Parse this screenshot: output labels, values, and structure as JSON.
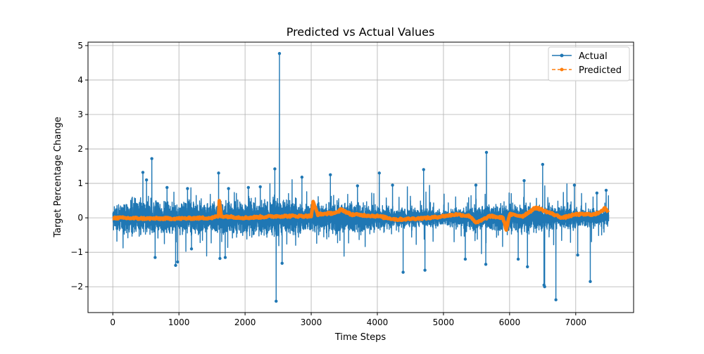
{
  "chart_data": {
    "type": "line",
    "title": "Predicted vs Actual Values",
    "xlabel": "Time Steps",
    "ylabel": "Target Percentage Change",
    "xlim": [
      -375,
      7875
    ],
    "ylim": [
      -2.75,
      5.1
    ],
    "xticks": [
      0,
      1000,
      2000,
      3000,
      4000,
      5000,
      6000,
      7000
    ],
    "xtick_labels": [
      "0",
      "1000",
      "2000",
      "3000",
      "4000",
      "5000",
      "6000",
      "7000"
    ],
    "yticks": [
      -2,
      -1,
      0,
      1,
      2,
      3,
      4,
      5
    ],
    "ytick_labels": [
      "−2",
      "−1",
      "0",
      "1",
      "2",
      "3",
      "4",
      "5"
    ],
    "grid": true,
    "legend_position": "top-right",
    "n_points": 7500,
    "colors": {
      "actual": "#1f77b4",
      "predicted": "#ff7f0e"
    },
    "series": [
      {
        "name": "Actual",
        "style": "solid line with circle markers",
        "color": "#1f77b4",
        "typical_band": [
          -0.5,
          0.5
        ],
        "noise_amplitude_by_x": [
          [
            0,
            0.25
          ],
          [
            400,
            0.45
          ],
          [
            1000,
            0.35
          ],
          [
            1600,
            0.4
          ],
          [
            2500,
            0.45
          ],
          [
            3000,
            0.35
          ],
          [
            3600,
            0.4
          ],
          [
            4200,
            0.25
          ],
          [
            5000,
            0.2
          ],
          [
            5500,
            0.3
          ],
          [
            6000,
            0.35
          ],
          [
            6500,
            0.3
          ],
          [
            7000,
            0.25
          ],
          [
            7500,
            0.2
          ]
        ],
        "spikes": [
          {
            "x": 455,
            "y": 1.32
          },
          {
            "x": 510,
            "y": 1.1
          },
          {
            "x": 590,
            "y": 1.72
          },
          {
            "x": 640,
            "y": -1.15
          },
          {
            "x": 820,
            "y": 0.88
          },
          {
            "x": 950,
            "y": -1.38
          },
          {
            "x": 980,
            "y": -1.28
          },
          {
            "x": 1130,
            "y": 0.85
          },
          {
            "x": 1190,
            "y": -0.9
          },
          {
            "x": 1600,
            "y": 1.3
          },
          {
            "x": 1620,
            "y": -1.18
          },
          {
            "x": 1700,
            "y": -1.15
          },
          {
            "x": 1750,
            "y": 0.85
          },
          {
            "x": 2050,
            "y": 0.88
          },
          {
            "x": 2230,
            "y": 0.9
          },
          {
            "x": 2450,
            "y": 1.42
          },
          {
            "x": 2470,
            "y": -2.42
          },
          {
            "x": 2520,
            "y": 4.77
          },
          {
            "x": 2560,
            "y": -1.32
          },
          {
            "x": 2860,
            "y": 1.18
          },
          {
            "x": 3290,
            "y": 1.25
          },
          {
            "x": 3700,
            "y": 0.93
          },
          {
            "x": 4030,
            "y": 1.3
          },
          {
            "x": 4230,
            "y": 0.95
          },
          {
            "x": 4390,
            "y": -1.58
          },
          {
            "x": 4700,
            "y": 1.4
          },
          {
            "x": 4720,
            "y": -1.52
          },
          {
            "x": 5330,
            "y": -1.2
          },
          {
            "x": 5490,
            "y": 0.95
          },
          {
            "x": 5650,
            "y": 1.9
          },
          {
            "x": 5640,
            "y": -1.35
          },
          {
            "x": 6130,
            "y": -1.2
          },
          {
            "x": 6220,
            "y": 1.08
          },
          {
            "x": 6270,
            "y": -1.42
          },
          {
            "x": 6500,
            "y": 1.55
          },
          {
            "x": 6530,
            "y": -2.0
          },
          {
            "x": 6520,
            "y": -1.95
          },
          {
            "x": 6700,
            "y": -2.38
          },
          {
            "x": 6980,
            "y": 0.95
          },
          {
            "x": 7030,
            "y": -1.08
          },
          {
            "x": 7220,
            "y": -1.85
          },
          {
            "x": 7320,
            "y": 0.72
          },
          {
            "x": 7460,
            "y": 0.8
          }
        ]
      },
      {
        "name": "Predicted",
        "style": "dashed line with circle markers",
        "color": "#ff7f0e",
        "trend_by_x": [
          [
            0,
            0.0
          ],
          [
            500,
            -0.02
          ],
          [
            1000,
            -0.02
          ],
          [
            1500,
            0.0
          ],
          [
            1600,
            0.05
          ],
          [
            1610,
            0.5
          ],
          [
            1640,
            0.05
          ],
          [
            2000,
            0.0
          ],
          [
            2500,
            0.05
          ],
          [
            3000,
            0.05
          ],
          [
            3030,
            0.45
          ],
          [
            3100,
            0.1
          ],
          [
            3400,
            0.15
          ],
          [
            3450,
            0.25
          ],
          [
            3600,
            0.1
          ],
          [
            4000,
            0.05
          ],
          [
            4300,
            -0.05
          ],
          [
            4800,
            0.0
          ],
          [
            5000,
            0.05
          ],
          [
            5200,
            0.1
          ],
          [
            5400,
            0.05
          ],
          [
            5500,
            -0.15
          ],
          [
            5700,
            0.05
          ],
          [
            5900,
            0.0
          ],
          [
            5950,
            -0.35
          ],
          [
            6000,
            0.1
          ],
          [
            6200,
            0.05
          ],
          [
            6400,
            0.3
          ],
          [
            6600,
            0.15
          ],
          [
            6800,
            0.0
          ],
          [
            7000,
            0.1
          ],
          [
            7300,
            0.1
          ],
          [
            7450,
            0.28
          ],
          [
            7500,
            0.1
          ]
        ]
      }
    ]
  }
}
